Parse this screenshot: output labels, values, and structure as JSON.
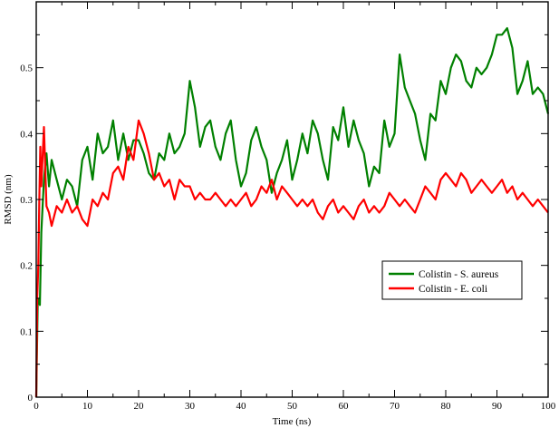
{
  "chart_data": {
    "type": "line",
    "title": "",
    "xlabel": "Time (ns)",
    "ylabel": "RMSD (nm)",
    "xlim": [
      0,
      100
    ],
    "ylim": [
      0,
      0.6
    ],
    "xticks": [
      0,
      10,
      20,
      30,
      40,
      50,
      60,
      70,
      80,
      90,
      100
    ],
    "yticks": [
      0,
      0.1,
      0.2,
      0.3,
      0.4,
      0.5
    ],
    "grid": false,
    "legend_position": "bottom-right",
    "series": [
      {
        "name": "Colistin - S. aureus",
        "color": "#008000",
        "x": [
          0,
          0.3,
          0.7,
          1,
          1.5,
          2,
          2.5,
          3,
          4,
          5,
          6,
          7,
          8,
          9,
          10,
          11,
          12,
          13,
          14,
          15,
          16,
          17,
          18,
          19,
          20,
          21,
          22,
          23,
          24,
          25,
          26,
          27,
          28,
          29,
          30,
          31,
          32,
          33,
          34,
          35,
          36,
          37,
          38,
          39,
          40,
          41,
          42,
          43,
          44,
          45,
          46,
          47,
          48,
          49,
          50,
          51,
          52,
          53,
          54,
          55,
          56,
          57,
          58,
          59,
          60,
          61,
          62,
          63,
          64,
          65,
          66,
          67,
          68,
          69,
          70,
          71,
          72,
          73,
          74,
          75,
          76,
          77,
          78,
          79,
          80,
          81,
          82,
          83,
          84,
          85,
          86,
          87,
          88,
          89,
          90,
          91,
          92,
          93,
          94,
          95,
          96,
          97,
          98,
          99,
          100
        ],
        "y": [
          0.0,
          0.15,
          0.14,
          0.25,
          0.33,
          0.37,
          0.32,
          0.36,
          0.33,
          0.3,
          0.33,
          0.32,
          0.29,
          0.36,
          0.38,
          0.33,
          0.4,
          0.37,
          0.38,
          0.42,
          0.36,
          0.4,
          0.36,
          0.39,
          0.39,
          0.37,
          0.34,
          0.33,
          0.37,
          0.36,
          0.4,
          0.37,
          0.38,
          0.4,
          0.48,
          0.44,
          0.38,
          0.41,
          0.42,
          0.38,
          0.36,
          0.4,
          0.42,
          0.36,
          0.32,
          0.34,
          0.39,
          0.41,
          0.38,
          0.36,
          0.31,
          0.34,
          0.36,
          0.39,
          0.33,
          0.36,
          0.4,
          0.37,
          0.42,
          0.4,
          0.36,
          0.33,
          0.41,
          0.39,
          0.44,
          0.38,
          0.42,
          0.39,
          0.37,
          0.32,
          0.35,
          0.34,
          0.42,
          0.38,
          0.4,
          0.52,
          0.47,
          0.45,
          0.43,
          0.39,
          0.36,
          0.43,
          0.42,
          0.48,
          0.46,
          0.5,
          0.52,
          0.51,
          0.48,
          0.47,
          0.5,
          0.49,
          0.5,
          0.52,
          0.55,
          0.55,
          0.56,
          0.53,
          0.46,
          0.48,
          0.51,
          0.46,
          0.47,
          0.46,
          0.43
        ]
      },
      {
        "name": "Colistin - E. coli",
        "color": "#ff0000",
        "x": [
          0,
          0.2,
          0.4,
          0.6,
          0.8,
          1,
          1.5,
          2,
          2.5,
          3,
          4,
          5,
          6,
          7,
          8,
          9,
          10,
          11,
          12,
          13,
          14,
          15,
          16,
          17,
          18,
          19,
          20,
          21,
          22,
          23,
          24,
          25,
          26,
          27,
          28,
          29,
          30,
          31,
          32,
          33,
          34,
          35,
          36,
          37,
          38,
          39,
          40,
          41,
          42,
          43,
          44,
          45,
          46,
          47,
          48,
          49,
          50,
          51,
          52,
          53,
          54,
          55,
          56,
          57,
          58,
          59,
          60,
          61,
          62,
          63,
          64,
          65,
          66,
          67,
          68,
          69,
          70,
          71,
          72,
          73,
          74,
          75,
          76,
          77,
          78,
          79,
          80,
          81,
          82,
          83,
          84,
          85,
          86,
          87,
          88,
          89,
          90,
          91,
          92,
          93,
          94,
          95,
          96,
          97,
          98,
          99,
          100
        ],
        "y": [
          0.0,
          0.15,
          0.2,
          0.3,
          0.38,
          0.32,
          0.41,
          0.29,
          0.28,
          0.26,
          0.29,
          0.28,
          0.3,
          0.28,
          0.29,
          0.27,
          0.26,
          0.3,
          0.29,
          0.31,
          0.3,
          0.34,
          0.35,
          0.33,
          0.38,
          0.36,
          0.42,
          0.4,
          0.37,
          0.33,
          0.34,
          0.32,
          0.33,
          0.3,
          0.33,
          0.32,
          0.32,
          0.3,
          0.31,
          0.3,
          0.3,
          0.31,
          0.3,
          0.29,
          0.3,
          0.29,
          0.3,
          0.31,
          0.29,
          0.3,
          0.32,
          0.31,
          0.33,
          0.3,
          0.32,
          0.31,
          0.3,
          0.29,
          0.3,
          0.29,
          0.3,
          0.28,
          0.27,
          0.29,
          0.3,
          0.28,
          0.29,
          0.28,
          0.27,
          0.29,
          0.3,
          0.28,
          0.29,
          0.28,
          0.29,
          0.31,
          0.3,
          0.29,
          0.3,
          0.29,
          0.28,
          0.3,
          0.32,
          0.31,
          0.3,
          0.33,
          0.34,
          0.33,
          0.32,
          0.34,
          0.33,
          0.31,
          0.32,
          0.33,
          0.32,
          0.31,
          0.32,
          0.33,
          0.31,
          0.32,
          0.3,
          0.31,
          0.3,
          0.29,
          0.3,
          0.29,
          0.28
        ]
      }
    ]
  }
}
